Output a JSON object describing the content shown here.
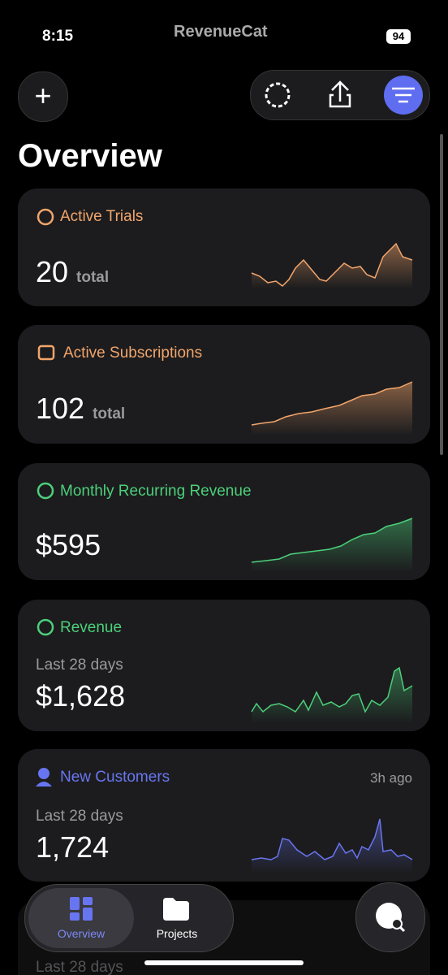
{
  "status_bar": {
    "time": "8:15",
    "app_name": "RevenueCat",
    "battery": "94"
  },
  "title": "Overview",
  "cards": [
    {
      "title": "Active Trials",
      "value": "20",
      "unit": "total"
    },
    {
      "title": "Active Subscriptions",
      "value": "102",
      "unit": "total"
    },
    {
      "title": "Monthly Recurring Revenue",
      "value": "$595"
    },
    {
      "title": "Revenue",
      "subtitle": "Last 28 days",
      "value": "$1,628"
    },
    {
      "title": "New Customers",
      "updated": "3h ago",
      "subtitle": "Last 28 days",
      "value": "1,724"
    },
    {
      "subtitle": "Last 28 days"
    }
  ],
  "tab_bar": {
    "tabs": [
      "Overview",
      "Projects"
    ]
  }
}
